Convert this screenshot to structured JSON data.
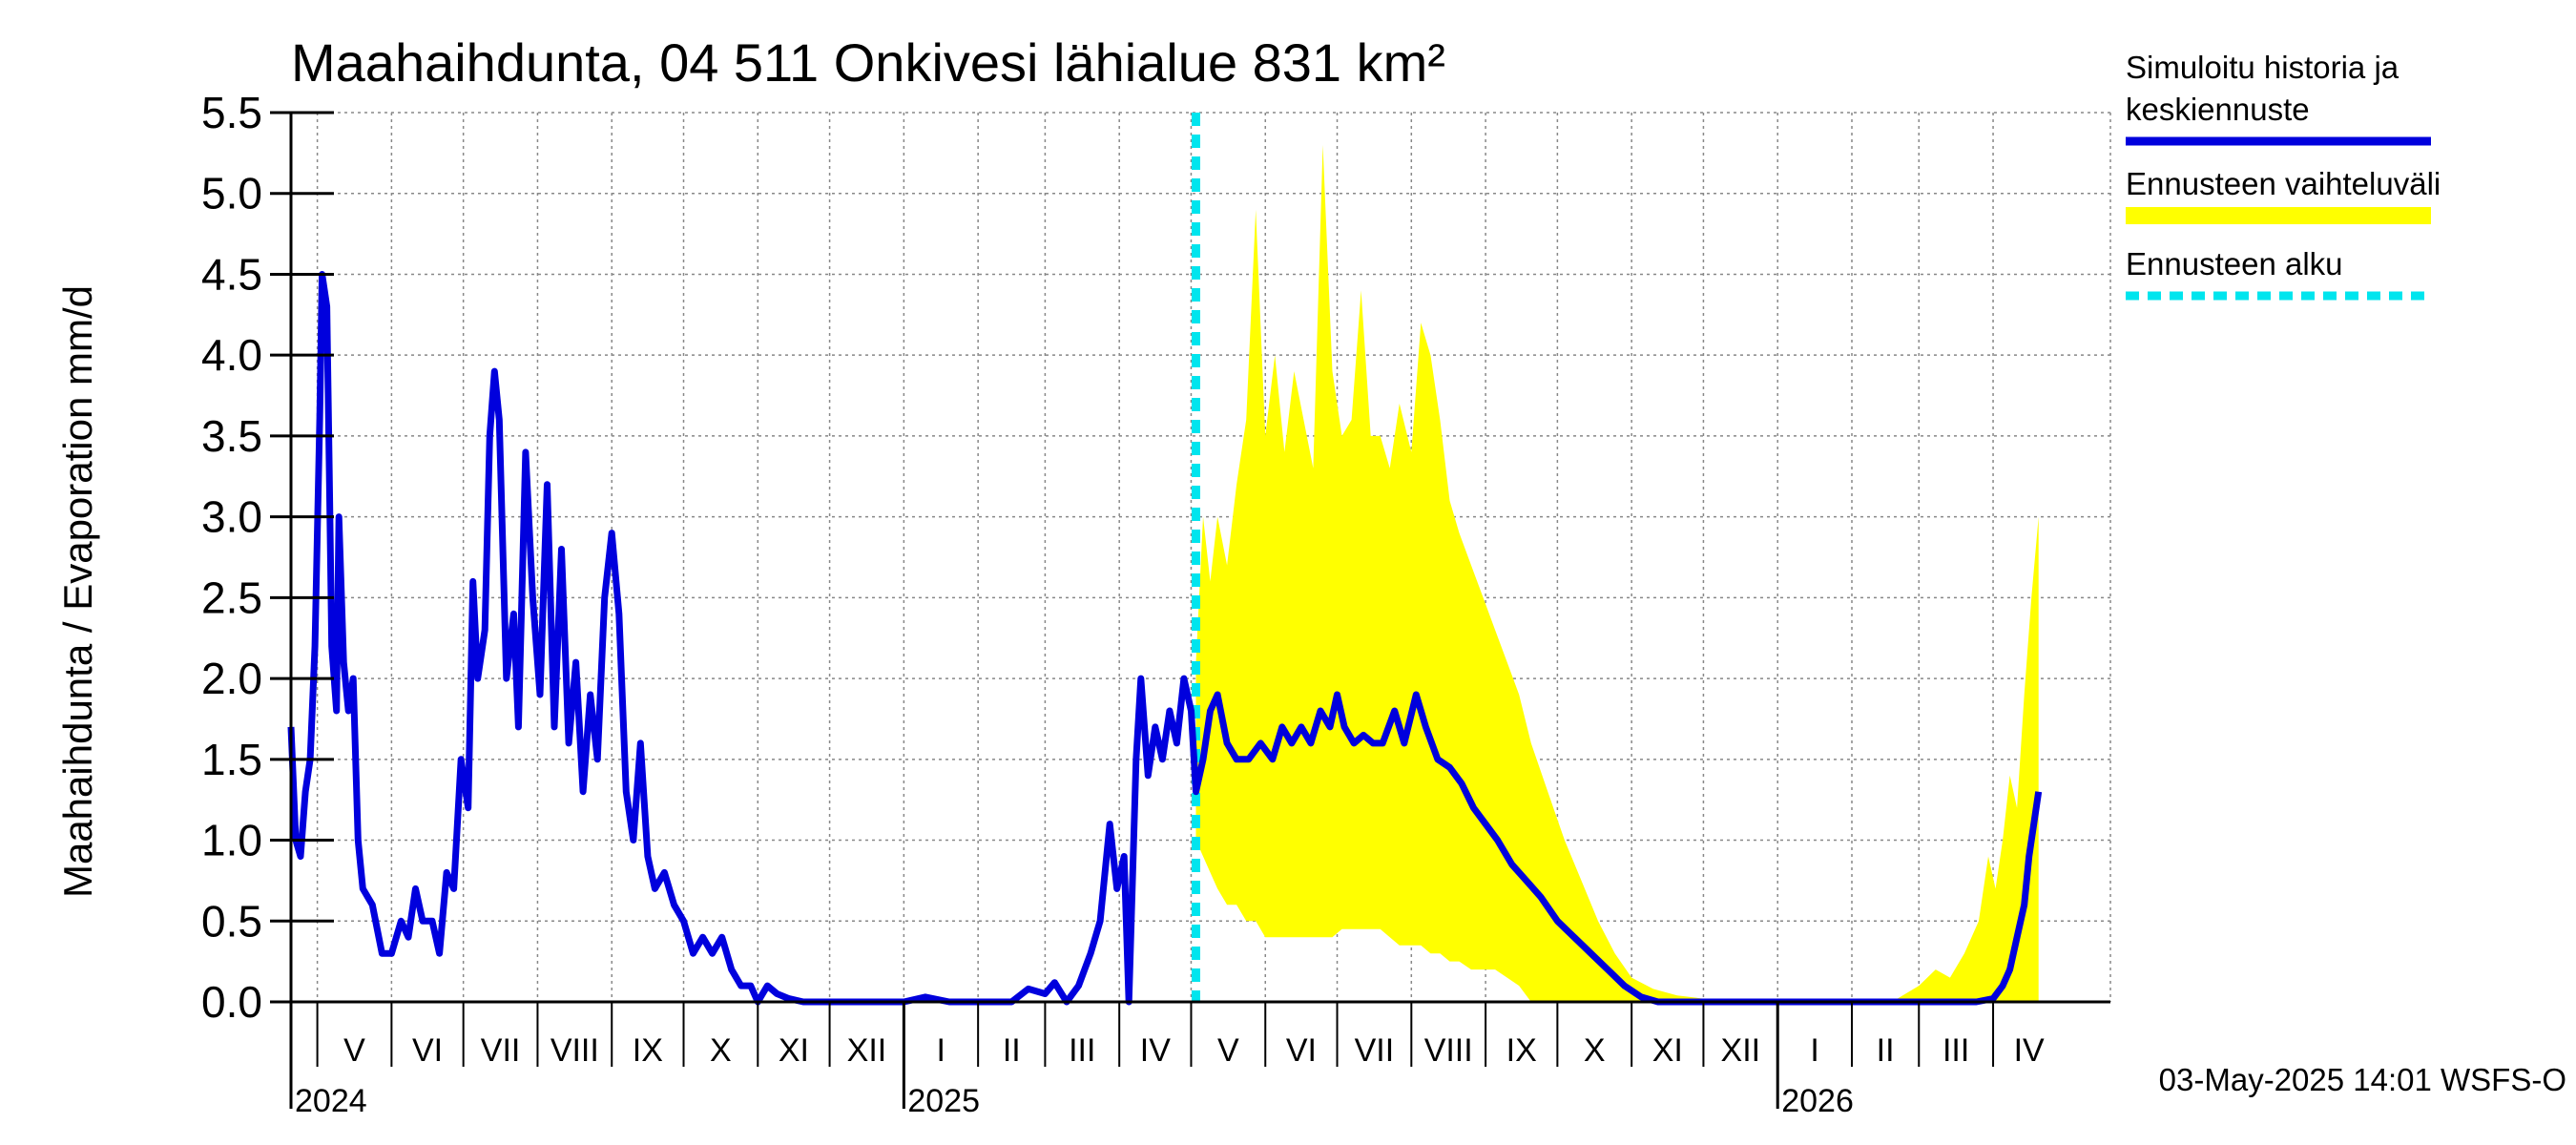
{
  "chart_data": {
    "type": "line",
    "title": "Maahaihdunta, 04 511 Onkivesi lähialue 831 km²",
    "ylabel": "Maahaihdunta / Evaporation   mm/d",
    "ylim": [
      0,
      5.5
    ],
    "yticks": [
      "0.0",
      "0.5",
      "1.0",
      "1.5",
      "2.0",
      "2.5",
      "3.0",
      "3.5",
      "4.0",
      "4.5",
      "5.0",
      "5.5"
    ],
    "x_start": "2024-04-20",
    "x_end": "2026-05-20",
    "grid": true,
    "months": [
      {
        "label": "V",
        "start": "2024-05-01"
      },
      {
        "label": "VI",
        "start": "2024-06-01"
      },
      {
        "label": "VII",
        "start": "2024-07-01"
      },
      {
        "label": "VIII",
        "start": "2024-08-01"
      },
      {
        "label": "IX",
        "start": "2024-09-01"
      },
      {
        "label": "X",
        "start": "2024-10-01"
      },
      {
        "label": "XI",
        "start": "2024-11-01"
      },
      {
        "label": "XII",
        "start": "2024-12-01"
      },
      {
        "label": "I",
        "start": "2025-01-01"
      },
      {
        "label": "II",
        "start": "2025-02-01"
      },
      {
        "label": "III",
        "start": "2025-03-01"
      },
      {
        "label": "IV",
        "start": "2025-04-01"
      },
      {
        "label": "V",
        "start": "2025-05-01"
      },
      {
        "label": "VI",
        "start": "2025-06-01"
      },
      {
        "label": "VII",
        "start": "2025-07-01"
      },
      {
        "label": "VIII",
        "start": "2025-08-01"
      },
      {
        "label": "IX",
        "start": "2025-09-01"
      },
      {
        "label": "X",
        "start": "2025-10-01"
      },
      {
        "label": "XI",
        "start": "2025-11-01"
      },
      {
        "label": "XII",
        "start": "2025-12-01"
      },
      {
        "label": "I",
        "start": "2026-01-01"
      },
      {
        "label": "II",
        "start": "2026-02-01"
      },
      {
        "label": "III",
        "start": "2026-03-01"
      },
      {
        "label": "IV",
        "start": "2026-04-01"
      }
    ],
    "years": [
      {
        "label": "2024",
        "date": "2024-04-20"
      },
      {
        "label": "2025",
        "date": "2025-01-01"
      },
      {
        "label": "2026",
        "date": "2026-01-01"
      }
    ],
    "forecast_start": "2025-05-03",
    "series": [
      {
        "name": "Simuloitu historia ja keskiennuste",
        "color": "#0000dd",
        "points": [
          [
            "2024-04-20",
            1.7
          ],
          [
            "2024-04-22",
            1.0
          ],
          [
            "2024-04-24",
            0.9
          ],
          [
            "2024-04-26",
            1.3
          ],
          [
            "2024-04-28",
            1.5
          ],
          [
            "2024-04-30",
            2.2
          ],
          [
            "2024-05-02",
            3.6
          ],
          [
            "2024-05-03",
            4.5
          ],
          [
            "2024-05-05",
            4.3
          ],
          [
            "2024-05-06",
            3.3
          ],
          [
            "2024-05-07",
            2.2
          ],
          [
            "2024-05-09",
            1.8
          ],
          [
            "2024-05-10",
            3.0
          ],
          [
            "2024-05-12",
            2.1
          ],
          [
            "2024-05-14",
            1.8
          ],
          [
            "2024-05-16",
            2.0
          ],
          [
            "2024-05-18",
            1.0
          ],
          [
            "2024-05-20",
            0.7
          ],
          [
            "2024-05-24",
            0.6
          ],
          [
            "2024-05-28",
            0.3
          ],
          [
            "2024-06-01",
            0.3
          ],
          [
            "2024-06-05",
            0.5
          ],
          [
            "2024-06-08",
            0.4
          ],
          [
            "2024-06-11",
            0.7
          ],
          [
            "2024-06-14",
            0.5
          ],
          [
            "2024-06-18",
            0.5
          ],
          [
            "2024-06-21",
            0.3
          ],
          [
            "2024-06-24",
            0.8
          ],
          [
            "2024-06-27",
            0.7
          ],
          [
            "2024-06-30",
            1.5
          ],
          [
            "2024-07-03",
            1.2
          ],
          [
            "2024-07-05",
            2.6
          ],
          [
            "2024-07-07",
            2.0
          ],
          [
            "2024-07-10",
            2.3
          ],
          [
            "2024-07-12",
            3.5
          ],
          [
            "2024-07-14",
            3.9
          ],
          [
            "2024-07-16",
            3.6
          ],
          [
            "2024-07-19",
            2.0
          ],
          [
            "2024-07-22",
            2.4
          ],
          [
            "2024-07-24",
            1.7
          ],
          [
            "2024-07-27",
            3.4
          ],
          [
            "2024-07-30",
            2.5
          ],
          [
            "2024-08-02",
            1.9
          ],
          [
            "2024-08-05",
            3.2
          ],
          [
            "2024-08-08",
            1.7
          ],
          [
            "2024-08-11",
            2.8
          ],
          [
            "2024-08-14",
            1.6
          ],
          [
            "2024-08-17",
            2.1
          ],
          [
            "2024-08-20",
            1.3
          ],
          [
            "2024-08-23",
            1.9
          ],
          [
            "2024-08-26",
            1.5
          ],
          [
            "2024-08-29",
            2.5
          ],
          [
            "2024-09-01",
            2.9
          ],
          [
            "2024-09-04",
            2.4
          ],
          [
            "2024-09-07",
            1.3
          ],
          [
            "2024-09-10",
            1.0
          ],
          [
            "2024-09-13",
            1.6
          ],
          [
            "2024-09-16",
            0.9
          ],
          [
            "2024-09-19",
            0.7
          ],
          [
            "2024-09-23",
            0.8
          ],
          [
            "2024-09-27",
            0.6
          ],
          [
            "2024-10-01",
            0.5
          ],
          [
            "2024-10-05",
            0.3
          ],
          [
            "2024-10-09",
            0.4
          ],
          [
            "2024-10-13",
            0.3
          ],
          [
            "2024-10-17",
            0.4
          ],
          [
            "2024-10-21",
            0.2
          ],
          [
            "2024-10-25",
            0.1
          ],
          [
            "2024-10-29",
            0.1
          ],
          [
            "2024-11-01",
            0.0
          ],
          [
            "2024-11-05",
            0.1
          ],
          [
            "2024-11-09",
            0.05
          ],
          [
            "2024-11-14",
            0.02
          ],
          [
            "2024-11-20",
            0.0
          ],
          [
            "2024-12-01",
            0.0
          ],
          [
            "2024-12-15",
            0.0
          ],
          [
            "2025-01-01",
            0.0
          ],
          [
            "2025-01-10",
            0.03
          ],
          [
            "2025-01-20",
            0.0
          ],
          [
            "2025-02-01",
            0.0
          ],
          [
            "2025-02-15",
            0.0
          ],
          [
            "2025-02-22",
            0.08
          ],
          [
            "2025-03-01",
            0.05
          ],
          [
            "2025-03-05",
            0.12
          ],
          [
            "2025-03-10",
            0.0
          ],
          [
            "2025-03-15",
            0.1
          ],
          [
            "2025-03-20",
            0.3
          ],
          [
            "2025-03-24",
            0.5
          ],
          [
            "2025-03-28",
            1.1
          ],
          [
            "2025-03-31",
            0.7
          ],
          [
            "2025-04-03",
            0.9
          ],
          [
            "2025-04-05",
            0.0
          ],
          [
            "2025-04-08",
            1.5
          ],
          [
            "2025-04-10",
            2.0
          ],
          [
            "2025-04-13",
            1.4
          ],
          [
            "2025-04-16",
            1.7
          ],
          [
            "2025-04-19",
            1.5
          ],
          [
            "2025-04-22",
            1.8
          ],
          [
            "2025-04-25",
            1.6
          ],
          [
            "2025-04-28",
            2.0
          ],
          [
            "2025-05-01",
            1.8
          ],
          [
            "2025-05-03",
            1.3
          ],
          [
            "2025-05-06",
            1.5
          ],
          [
            "2025-05-09",
            1.8
          ],
          [
            "2025-05-12",
            1.9
          ],
          [
            "2025-05-16",
            1.6
          ],
          [
            "2025-05-20",
            1.5
          ],
          [
            "2025-05-25",
            1.5
          ],
          [
            "2025-05-30",
            1.6
          ],
          [
            "2025-06-04",
            1.5
          ],
          [
            "2025-06-08",
            1.7
          ],
          [
            "2025-06-12",
            1.6
          ],
          [
            "2025-06-16",
            1.7
          ],
          [
            "2025-06-20",
            1.6
          ],
          [
            "2025-06-24",
            1.8
          ],
          [
            "2025-06-28",
            1.7
          ],
          [
            "2025-07-01",
            1.9
          ],
          [
            "2025-07-04",
            1.7
          ],
          [
            "2025-07-08",
            1.6
          ],
          [
            "2025-07-12",
            1.65
          ],
          [
            "2025-07-16",
            1.6
          ],
          [
            "2025-07-20",
            1.6
          ],
          [
            "2025-07-25",
            1.8
          ],
          [
            "2025-07-29",
            1.6
          ],
          [
            "2025-08-03",
            1.9
          ],
          [
            "2025-08-07",
            1.7
          ],
          [
            "2025-08-12",
            1.5
          ],
          [
            "2025-08-17",
            1.45
          ],
          [
            "2025-08-22",
            1.35
          ],
          [
            "2025-08-27",
            1.2
          ],
          [
            "2025-09-01",
            1.1
          ],
          [
            "2025-09-06",
            1.0
          ],
          [
            "2025-09-12",
            0.85
          ],
          [
            "2025-09-18",
            0.75
          ],
          [
            "2025-09-24",
            0.65
          ],
          [
            "2025-10-01",
            0.5
          ],
          [
            "2025-10-08",
            0.4
          ],
          [
            "2025-10-15",
            0.3
          ],
          [
            "2025-10-22",
            0.2
          ],
          [
            "2025-10-29",
            0.1
          ],
          [
            "2025-11-05",
            0.03
          ],
          [
            "2025-11-12",
            0.0
          ],
          [
            "2025-12-01",
            0.0
          ],
          [
            "2026-01-01",
            0.0
          ],
          [
            "2026-02-01",
            0.0
          ],
          [
            "2026-03-01",
            0.0
          ],
          [
            "2026-03-25",
            0.0
          ],
          [
            "2026-04-01",
            0.02
          ],
          [
            "2026-04-05",
            0.1
          ],
          [
            "2026-04-08",
            0.2
          ],
          [
            "2026-04-11",
            0.4
          ],
          [
            "2026-04-14",
            0.6
          ],
          [
            "2026-04-16",
            0.9
          ],
          [
            "2026-04-18",
            1.1
          ],
          [
            "2026-04-20",
            1.3
          ]
        ]
      },
      {
        "name": "Ennusteen vaihteluväli",
        "color": "#ffff00",
        "points": [
          [
            "2025-05-03",
            1.0,
            2.1
          ],
          [
            "2025-05-06",
            0.9,
            3.0
          ],
          [
            "2025-05-09",
            0.8,
            2.6
          ],
          [
            "2025-05-12",
            0.7,
            3.0
          ],
          [
            "2025-05-16",
            0.6,
            2.7
          ],
          [
            "2025-05-20",
            0.6,
            3.2
          ],
          [
            "2025-05-24",
            0.5,
            3.6
          ],
          [
            "2025-05-28",
            0.5,
            4.9
          ],
          [
            "2025-06-01",
            0.4,
            3.5
          ],
          [
            "2025-06-05",
            0.4,
            4.0
          ],
          [
            "2025-06-09",
            0.4,
            3.4
          ],
          [
            "2025-06-13",
            0.4,
            3.9
          ],
          [
            "2025-06-17",
            0.4,
            3.6
          ],
          [
            "2025-06-21",
            0.4,
            3.3
          ],
          [
            "2025-06-25",
            0.4,
            5.3
          ],
          [
            "2025-06-29",
            0.4,
            3.9
          ],
          [
            "2025-07-03",
            0.45,
            3.5
          ],
          [
            "2025-07-07",
            0.45,
            3.6
          ],
          [
            "2025-07-11",
            0.45,
            4.4
          ],
          [
            "2025-07-15",
            0.45,
            3.5
          ],
          [
            "2025-07-19",
            0.45,
            3.5
          ],
          [
            "2025-07-23",
            0.4,
            3.3
          ],
          [
            "2025-07-27",
            0.35,
            3.7
          ],
          [
            "2025-08-01",
            0.35,
            3.4
          ],
          [
            "2025-08-05",
            0.35,
            4.2
          ],
          [
            "2025-08-09",
            0.3,
            4.0
          ],
          [
            "2025-08-13",
            0.3,
            3.6
          ],
          [
            "2025-08-17",
            0.25,
            3.1
          ],
          [
            "2025-08-21",
            0.25,
            2.9
          ],
          [
            "2025-08-26",
            0.2,
            2.7
          ],
          [
            "2025-08-31",
            0.2,
            2.5
          ],
          [
            "2025-09-05",
            0.2,
            2.3
          ],
          [
            "2025-09-10",
            0.15,
            2.1
          ],
          [
            "2025-09-15",
            0.1,
            1.9
          ],
          [
            "2025-09-20",
            0.0,
            1.6
          ],
          [
            "2025-09-27",
            0.0,
            1.3
          ],
          [
            "2025-10-04",
            0.0,
            1.0
          ],
          [
            "2025-10-11",
            0.0,
            0.75
          ],
          [
            "2025-10-18",
            0.0,
            0.5
          ],
          [
            "2025-10-25",
            0.0,
            0.3
          ],
          [
            "2025-11-01",
            0.0,
            0.15
          ],
          [
            "2025-11-10",
            0.0,
            0.08
          ],
          [
            "2025-11-20",
            0.0,
            0.04
          ],
          [
            "2025-12-01",
            0.0,
            0.02
          ],
          [
            "2025-12-15",
            0.0,
            0.0
          ],
          [
            "2026-02-01",
            0.0,
            0.0
          ],
          [
            "2026-02-20",
            0.0,
            0.02
          ],
          [
            "2026-03-01",
            0.0,
            0.1
          ],
          [
            "2026-03-08",
            0.0,
            0.2
          ],
          [
            "2026-03-14",
            0.0,
            0.15
          ],
          [
            "2026-03-20",
            0.0,
            0.3
          ],
          [
            "2026-03-26",
            0.0,
            0.5
          ],
          [
            "2026-03-30",
            0.0,
            0.9
          ],
          [
            "2026-04-02",
            0.0,
            0.7
          ],
          [
            "2026-04-05",
            0.0,
            1.0
          ],
          [
            "2026-04-08",
            0.0,
            1.4
          ],
          [
            "2026-04-11",
            0.0,
            1.2
          ],
          [
            "2026-04-14",
            0.0,
            1.9
          ],
          [
            "2026-04-17",
            0.0,
            2.5
          ],
          [
            "2026-04-20",
            0.0,
            3.0
          ]
        ]
      }
    ],
    "legend": {
      "position": "right",
      "items": [
        {
          "label_lines": [
            "Simuloitu historia ja",
            "keskiennuste"
          ],
          "color": "#0000dd",
          "style": "solid"
        },
        {
          "label_lines": [
            "Ennusteen vaihteluväli"
          ],
          "color": "#ffff00",
          "style": "solid"
        },
        {
          "label_lines": [
            "Ennusteen alku"
          ],
          "color": "#00e5ee",
          "style": "dashed"
        }
      ]
    },
    "footer": "03-May-2025 14:01 WSFS-O"
  }
}
